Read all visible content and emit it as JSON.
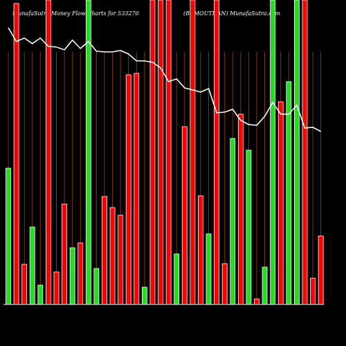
{
  "chart_data": {
    "type": "bar",
    "title": "MunafaSutra Money Flow Charts for 533270",
    "subtitle": "(BEMOUTHAN) MunafaSutra.com",
    "categories": [
      null,
      null,
      null,
      null,
      null,
      null,
      null,
      null,
      null,
      null,
      null,
      null,
      null,
      null,
      null,
      null,
      null,
      null,
      null,
      null,
      null,
      null,
      null,
      null,
      null,
      null,
      null,
      null,
      null,
      null,
      null,
      null,
      null,
      null,
      null,
      null,
      null,
      null,
      null,
      null
    ],
    "values": [
      197,
      435,
      58,
      112,
      28,
      440,
      47,
      145,
      82,
      89,
      440,
      52,
      156,
      140,
      129,
      332,
      334,
      25,
      440,
      440,
      440,
      73,
      257,
      440,
      157,
      102,
      440,
      59,
      240,
      275,
      223,
      8,
      54,
      440,
      293,
      322,
      440,
      440,
      38,
      99
    ],
    "colors": [
      "#22dd22",
      "#ff0000",
      "#ff0000",
      "#22dd22",
      "#22dd22",
      "#ff0000",
      "#ff0000",
      "#ff0000",
      "#22dd22",
      "#ff0000",
      "#22dd22",
      "#22dd22",
      "#ff0000",
      "#ff0000",
      "#ff0000",
      "#ff0000",
      "#ff0000",
      "#22dd22",
      "#ff0000",
      "#ff0000",
      "#ff0000",
      "#22dd22",
      "#ff0000",
      "#ff0000",
      "#ff0000",
      "#22dd22",
      "#ff0000",
      "#ff0000",
      "#22dd22",
      "#ff0000",
      "#22dd22",
      "#ff0000",
      "#22dd22",
      "#22dd22",
      "#ff0000",
      "#22dd22",
      "#22dd22",
      "#ff0000",
      "#ff0000",
      "#ff0000"
    ],
    "line": {
      "color": "#ffffff",
      "values": [
        400,
        380,
        385,
        377,
        385,
        373,
        372,
        368,
        382,
        370,
        380,
        366,
        365,
        365,
        367,
        362,
        352,
        352,
        350,
        342,
        322,
        326,
        313,
        310,
        307,
        312,
        277,
        278,
        282,
        266,
        260,
        259,
        272,
        292,
        275,
        275,
        288,
        255,
        256,
        250
      ]
    },
    "ylim": [
      0,
      440
    ]
  }
}
